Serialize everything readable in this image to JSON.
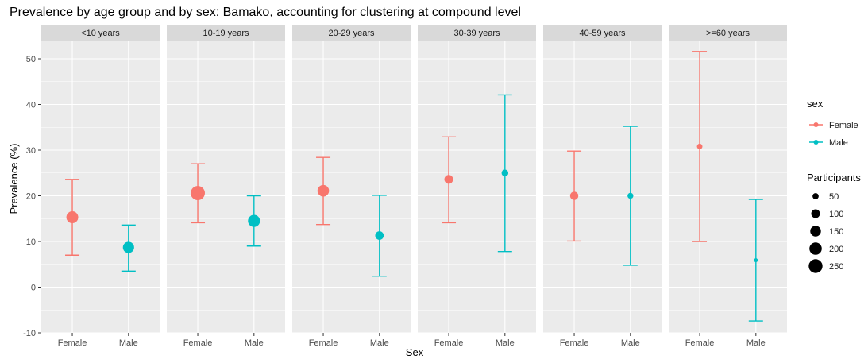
{
  "chart_data": {
    "type": "scatter",
    "subtype": "faceted point-range (error bars)",
    "title": "Prevalence by age group and by sex: Bamako, accounting for clustering at compound level",
    "xlabel": "Sex",
    "ylabel": "Prevalence (%)",
    "ylim": [
      -10,
      54
    ],
    "y_ticks": [
      -10,
      0,
      10,
      20,
      30,
      40,
      50
    ],
    "categories": [
      "Female",
      "Male"
    ],
    "facets": [
      {
        "label": "<10 years",
        "points": [
          {
            "sex": "Female",
            "estimate": 15.3,
            "lower": 7.0,
            "upper": 23.6,
            "participants": 185
          },
          {
            "sex": "Male",
            "estimate": 8.7,
            "lower": 3.5,
            "upper": 13.6,
            "participants": 165
          }
        ]
      },
      {
        "label": "10-19 years",
        "points": [
          {
            "sex": "Female",
            "estimate": 20.6,
            "lower": 14.1,
            "upper": 27.0,
            "participants": 265
          },
          {
            "sex": "Male",
            "estimate": 14.5,
            "lower": 9.0,
            "upper": 20.0,
            "participants": 190
          }
        ]
      },
      {
        "label": "20-29 years",
        "points": [
          {
            "sex": "Female",
            "estimate": 21.1,
            "lower": 13.7,
            "upper": 28.4,
            "participants": 175
          },
          {
            "sex": "Male",
            "estimate": 11.3,
            "lower": 2.4,
            "upper": 20.1,
            "participants": 95
          }
        ]
      },
      {
        "label": "30-39 years",
        "points": [
          {
            "sex": "Female",
            "estimate": 23.6,
            "lower": 14.1,
            "upper": 32.9,
            "participants": 100
          },
          {
            "sex": "Male",
            "estimate": 25.0,
            "lower": 7.8,
            "upper": 42.1,
            "participants": 60
          }
        ]
      },
      {
        "label": "40-59 years",
        "points": [
          {
            "sex": "Female",
            "estimate": 20.0,
            "lower": 10.1,
            "upper": 29.8,
            "participants": 90
          },
          {
            "sex": "Male",
            "estimate": 20.0,
            "lower": 4.8,
            "upper": 35.2,
            "participants": 45
          }
        ]
      },
      {
        "label": ">=60 years",
        "points": [
          {
            "sex": "Female",
            "estimate": 30.8,
            "lower": 10.0,
            "upper": 51.6,
            "participants": 40
          },
          {
            "sex": "Male",
            "estimate": 5.9,
            "lower": -7.4,
            "upper": 19.2,
            "participants": 20
          }
        ]
      }
    ],
    "legend_color": {
      "title": "sex",
      "entries": [
        {
          "label": "Female",
          "color": "#F8766D"
        },
        {
          "label": "Male",
          "color": "#00BFC4"
        }
      ]
    },
    "legend_size": {
      "title": "Participants",
      "entries": [
        {
          "label": "50",
          "value": 50
        },
        {
          "label": "100",
          "value": 100
        },
        {
          "label": "150",
          "value": 150
        },
        {
          "label": "200",
          "value": 200
        },
        {
          "label": "250",
          "value": 250
        }
      ]
    },
    "grid": true,
    "legend_position": "right",
    "colors": {
      "panel_background": "#EBEBEB",
      "strip_background": "#D9D9D9",
      "gridline": "#FFFFFF",
      "text": "#4D4D4D",
      "female": "#F8766D",
      "male": "#00BFC4"
    }
  }
}
